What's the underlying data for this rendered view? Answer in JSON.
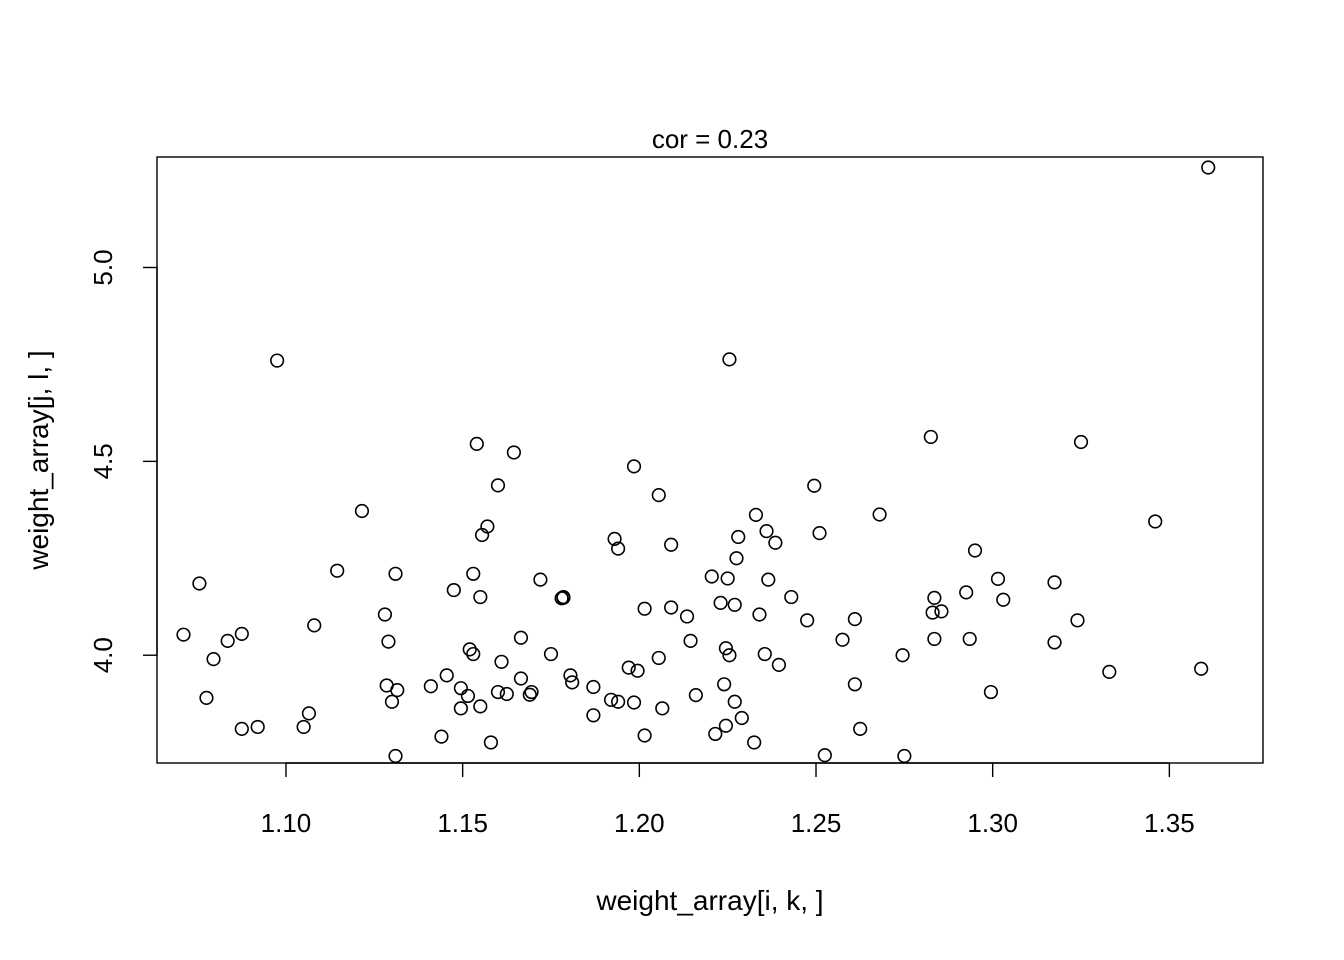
{
  "chart_data": {
    "type": "scatter",
    "title": "cor = 0.23",
    "xlabel": "weight_array[i, k, ]",
    "ylabel": "weight_array[j, l, ]",
    "xlim": [
      1.0635,
      1.3765
    ],
    "ylim": [
      3.722,
      5.285
    ],
    "xticks": [
      1.1,
      1.15,
      1.2,
      1.25,
      1.3,
      1.35
    ],
    "xtick_labels": [
      "1.10",
      "1.15",
      "1.20",
      "1.25",
      "1.30",
      "1.35"
    ],
    "yticks": [
      4.0,
      4.5,
      5.0
    ],
    "ytick_labels": [
      "4.0",
      "4.5",
      "5.0"
    ],
    "grid": false,
    "legend": "none",
    "marker": "open-circle",
    "color": "#000000",
    "points": [
      [
        1.071,
        4.053
      ],
      [
        1.0755,
        4.185
      ],
      [
        1.0775,
        3.89
      ],
      [
        1.0795,
        3.99
      ],
      [
        1.0835,
        4.037
      ],
      [
        1.0875,
        4.055
      ],
      [
        1.0875,
        3.81
      ],
      [
        1.092,
        3.815
      ],
      [
        1.0975,
        4.76
      ],
      [
        1.105,
        3.815
      ],
      [
        1.1065,
        3.85
      ],
      [
        1.108,
        4.077
      ],
      [
        1.1145,
        4.218
      ],
      [
        1.1215,
        4.372
      ],
      [
        1.128,
        4.105
      ],
      [
        1.1285,
        3.922
      ],
      [
        1.129,
        4.035
      ],
      [
        1.13,
        3.88
      ],
      [
        1.131,
        3.74
      ],
      [
        1.131,
        4.21
      ],
      [
        1.1315,
        3.91
      ],
      [
        1.141,
        3.92
      ],
      [
        1.144,
        3.79
      ],
      [
        1.1455,
        3.948
      ],
      [
        1.1475,
        4.168
      ],
      [
        1.1495,
        3.915
      ],
      [
        1.1495,
        3.863
      ],
      [
        1.1515,
        3.895
      ],
      [
        1.152,
        4.015
      ],
      [
        1.153,
        4.21
      ],
      [
        1.153,
        4.003
      ],
      [
        1.154,
        4.545
      ],
      [
        1.155,
        3.868
      ],
      [
        1.1555,
        4.31
      ],
      [
        1.155,
        4.15
      ],
      [
        1.157,
        4.332
      ],
      [
        1.158,
        3.775
      ],
      [
        1.16,
        4.438
      ],
      [
        1.16,
        3.905
      ],
      [
        1.161,
        3.983
      ],
      [
        1.1625,
        3.9
      ],
      [
        1.1645,
        4.523
      ],
      [
        1.1665,
        4.045
      ],
      [
        1.1665,
        3.94
      ],
      [
        1.169,
        3.898
      ],
      [
        1.1695,
        3.905
      ],
      [
        1.172,
        4.195
      ],
      [
        1.175,
        4.003
      ],
      [
        1.178,
        4.147
      ],
      [
        1.1785,
        4.148
      ],
      [
        1.1785,
        4.15
      ],
      [
        1.1805,
        3.948
      ],
      [
        1.181,
        3.93
      ],
      [
        1.187,
        3.918
      ],
      [
        1.187,
        3.845
      ],
      [
        1.192,
        3.885
      ],
      [
        1.193,
        4.3
      ],
      [
        1.194,
        4.275
      ],
      [
        1.194,
        3.88
      ],
      [
        1.197,
        3.968
      ],
      [
        1.1985,
        4.487
      ],
      [
        1.1985,
        3.878
      ],
      [
        1.1995,
        3.96
      ],
      [
        1.2015,
        3.793
      ],
      [
        1.2015,
        4.12
      ],
      [
        1.2055,
        4.413
      ],
      [
        1.2055,
        3.993
      ],
      [
        1.2065,
        3.863
      ],
      [
        1.209,
        4.123
      ],
      [
        1.209,
        4.285
      ],
      [
        1.2135,
        4.1
      ],
      [
        1.2145,
        4.037
      ],
      [
        1.216,
        3.897
      ],
      [
        1.2205,
        4.203
      ],
      [
        1.2215,
        3.797
      ],
      [
        1.223,
        4.135
      ],
      [
        1.224,
        3.925
      ],
      [
        1.2245,
        3.818
      ],
      [
        1.2245,
        4.018
      ],
      [
        1.225,
        4.198
      ],
      [
        1.2255,
        4.0
      ],
      [
        1.2255,
        4.763
      ],
      [
        1.227,
        4.13
      ],
      [
        1.227,
        3.88
      ],
      [
        1.2275,
        4.25
      ],
      [
        1.228,
        4.305
      ],
      [
        1.229,
        3.838
      ],
      [
        1.2325,
        3.775
      ],
      [
        1.233,
        4.362
      ],
      [
        1.234,
        4.105
      ],
      [
        1.2355,
        4.003
      ],
      [
        1.236,
        4.32
      ],
      [
        1.2365,
        4.195
      ],
      [
        1.2385,
        4.29
      ],
      [
        1.2395,
        3.975
      ],
      [
        1.243,
        4.15
      ],
      [
        1.2475,
        4.09
      ],
      [
        1.2495,
        4.437
      ],
      [
        1.251,
        4.315
      ],
      [
        1.2525,
        3.742
      ],
      [
        1.2575,
        4.04
      ],
      [
        1.261,
        4.093
      ],
      [
        1.261,
        3.925
      ],
      [
        1.2625,
        3.81
      ],
      [
        1.268,
        4.363
      ],
      [
        1.2745,
        4.0
      ],
      [
        1.275,
        3.74
      ],
      [
        1.2825,
        4.563
      ],
      [
        1.283,
        4.11
      ],
      [
        1.2835,
        4.042
      ],
      [
        1.2835,
        4.148
      ],
      [
        1.2855,
        4.113
      ],
      [
        1.2925,
        4.162
      ],
      [
        1.2935,
        4.042
      ],
      [
        1.295,
        4.27
      ],
      [
        1.2995,
        3.905
      ],
      [
        1.3015,
        4.197
      ],
      [
        1.303,
        4.143
      ],
      [
        1.3175,
        4.188
      ],
      [
        1.3175,
        4.033
      ],
      [
        1.324,
        4.09
      ],
      [
        1.325,
        4.55
      ],
      [
        1.333,
        3.957
      ],
      [
        1.346,
        4.345
      ],
      [
        1.359,
        3.965
      ],
      [
        1.361,
        5.258
      ]
    ]
  }
}
